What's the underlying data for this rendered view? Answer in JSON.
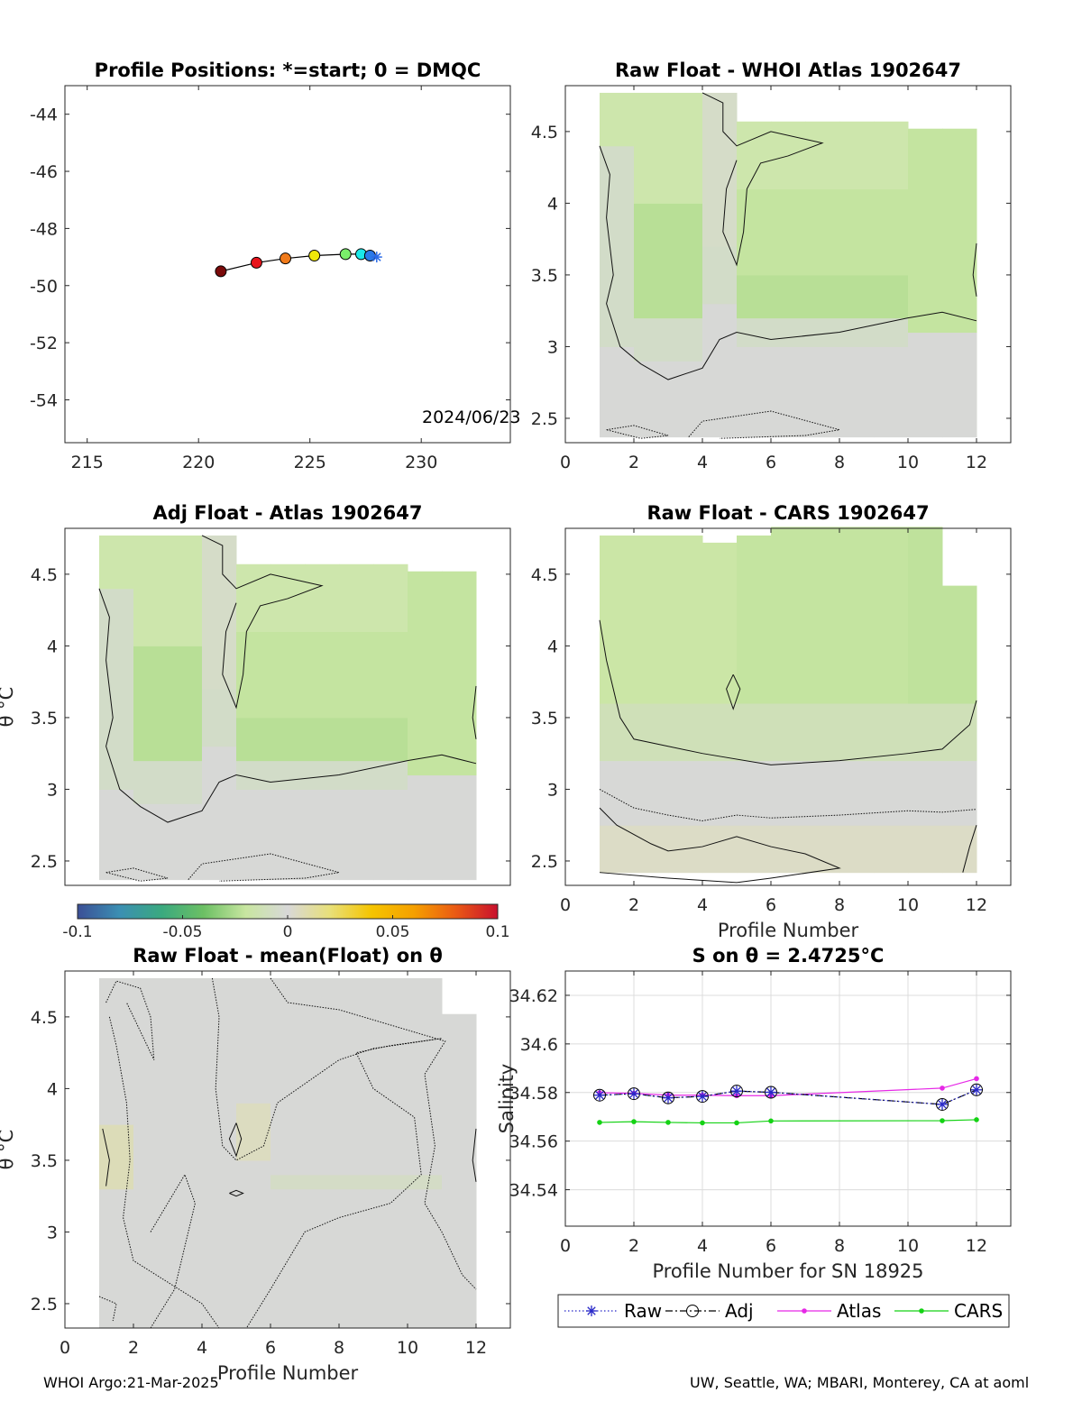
{
  "footer": {
    "left": "WHOI Argo:21-Mar-2025",
    "right": "UW, Seattle, WA; MBARI, Monterey, CA at aoml"
  },
  "colorbar": {
    "ticks": [
      "-0.1",
      "-0.05",
      "0",
      "0.05",
      "0.1"
    ],
    "range": [
      -0.1,
      0.1
    ],
    "colors": [
      "#3b4f96",
      "#3b8fb3",
      "#3aa97f",
      "#6cc064",
      "#c8e6a0",
      "#d8d8d8",
      "#e8e07a",
      "#f5c400",
      "#f5a000",
      "#ea5a14",
      "#c8102e"
    ]
  },
  "chart_data": [
    {
      "id": "positions",
      "type": "scatter",
      "title": "Profile Positions: *=start; 0 = DMQC",
      "xlabel": "",
      "ylabel": "",
      "xlim": [
        214,
        234
      ],
      "ylim": [
        -55.5,
        -43
      ],
      "xticks": [
        "215",
        "220",
        "225",
        "230"
      ],
      "yticks": [
        "-44",
        "-46",
        "-48",
        "-50",
        "-52",
        "-54"
      ],
      "annotation": "2024/06/23",
      "points": [
        {
          "lon": 221.0,
          "lat": -49.5,
          "color": "#7a0a0a"
        },
        {
          "lon": 222.6,
          "lat": -49.2,
          "color": "#e8141c"
        },
        {
          "lon": 223.9,
          "lat": -49.05,
          "color": "#f07a1a"
        },
        {
          "lon": 225.2,
          "lat": -48.95,
          "color": "#f0e80a"
        },
        {
          "lon": 226.6,
          "lat": -48.9,
          "color": "#7aee6a"
        },
        {
          "lon": 227.3,
          "lat": -48.9,
          "color": "#1ae8e8"
        },
        {
          "lon": 227.7,
          "lat": -48.95,
          "color": "#2a7ae8"
        },
        {
          "lon": 228.0,
          "lat": -49.0,
          "color": "#2a6ae8"
        }
      ]
    },
    {
      "id": "raw-whoi",
      "type": "heatmap",
      "title": "Raw Float - WHOI Atlas  1902647",
      "xlabel": "",
      "ylabel": "",
      "xlim": [
        0,
        13
      ],
      "ylim": [
        2.33,
        4.82
      ],
      "xticks": [
        "0",
        "2",
        "4",
        "6",
        "8",
        "10",
        "12"
      ],
      "yticks": [
        "4.5",
        "4",
        "3.5",
        "3",
        "2.5"
      ]
    },
    {
      "id": "adj-atlas",
      "type": "heatmap",
      "title": "Adj Float - Atlas  1902647",
      "xlabel": "",
      "ylabel": "θ °C",
      "xlim": [
        -1,
        12
      ],
      "ylim": [
        2.33,
        4.82
      ],
      "xticks": [],
      "yticks": [
        "4.5",
        "4",
        "3.5",
        "3",
        "2.5"
      ]
    },
    {
      "id": "raw-cars",
      "type": "heatmap",
      "title": "Raw Float - CARS  1902647",
      "xlabel": "Profile Number",
      "ylabel": "",
      "xlim": [
        0,
        13
      ],
      "ylim": [
        2.33,
        4.82
      ],
      "xticks": [
        "0",
        "2",
        "4",
        "6",
        "8",
        "10",
        "12"
      ],
      "yticks": [
        "4.5",
        "4",
        "3.5",
        "3",
        "2.5"
      ]
    },
    {
      "id": "raw-mean",
      "type": "heatmap",
      "title": "Raw Float - mean(Float) on θ",
      "xlabel": "Profile Number",
      "ylabel": "θ °C",
      "xlim": [
        0,
        13
      ],
      "ylim": [
        2.33,
        4.82
      ],
      "xticks": [
        "0",
        "2",
        "4",
        "6",
        "8",
        "10",
        "12"
      ],
      "yticks": [
        "4.5",
        "4",
        "3.5",
        "3",
        "2.5"
      ]
    },
    {
      "id": "salinity",
      "type": "line",
      "title": "S on θ = 2.4725°C",
      "xlabel": "Profile Number for SN 18925",
      "ylabel": "Salinity",
      "xlim": [
        0,
        13
      ],
      "ylim": [
        34.525,
        34.63
      ],
      "xticks": [
        "0",
        "2",
        "4",
        "6",
        "8",
        "10",
        "12"
      ],
      "yticks": [
        "34.62",
        "34.6",
        "34.58",
        "34.56",
        "34.54"
      ],
      "grid": true,
      "legend": [
        "Raw",
        "Adj",
        "Atlas",
        "CARS"
      ],
      "series": [
        {
          "name": "Raw",
          "color": "#2828c8",
          "x": [
            1,
            2,
            3,
            4,
            5,
            6,
            11,
            12
          ],
          "y": [
            34.5789,
            34.5795,
            34.5778,
            34.5784,
            34.5806,
            34.5801,
            34.5751,
            34.5811
          ]
        },
        {
          "name": "Adj",
          "color": "#000000",
          "x": [
            1,
            2,
            3,
            4,
            5,
            6,
            11,
            12
          ],
          "y": [
            34.5789,
            34.5795,
            34.5778,
            34.5784,
            34.5806,
            34.5801,
            34.5751,
            34.5811
          ]
        },
        {
          "name": "Atlas",
          "color": "#e628e6",
          "x": [
            1,
            2,
            3,
            4,
            5,
            6,
            11,
            12
          ],
          "y": [
            34.5799,
            34.5797,
            34.5789,
            34.5789,
            34.5787,
            34.5787,
            34.5818,
            34.5857
          ]
        },
        {
          "name": "CARS",
          "color": "#14d214",
          "x": [
            1,
            2,
            3,
            4,
            5,
            6,
            11,
            12
          ],
          "y": [
            34.5677,
            34.568,
            34.5677,
            34.5675,
            34.5675,
            34.5683,
            34.5684,
            34.5688
          ]
        }
      ]
    }
  ]
}
